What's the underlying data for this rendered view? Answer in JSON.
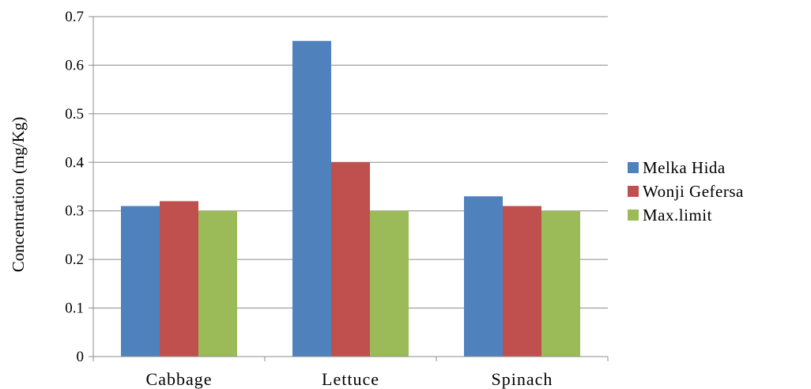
{
  "chart_data": {
    "type": "bar",
    "categories": [
      "Cabbage",
      "Lettuce",
      "Spinach"
    ],
    "series": [
      {
        "name": "Melka Hida",
        "values": [
          0.31,
          0.65,
          0.33
        ],
        "color": "#4f81bd"
      },
      {
        "name": "Wonji Gefersa",
        "values": [
          0.32,
          0.4,
          0.31
        ],
        "color": "#c0504d"
      },
      {
        "name": "Max.limit",
        "values": [
          0.3,
          0.3,
          0.3
        ],
        "color": "#9bbb59"
      }
    ],
    "ylabel": "Concentration (mg/Kg)",
    "xlabel": "",
    "ylim": [
      0,
      0.7
    ],
    "yticks": [
      "0",
      "0.1",
      "0.2",
      "0.3",
      "0.4",
      "0.5",
      "0.6",
      "0.7"
    ],
    "grid": true,
    "legend": "right"
  }
}
